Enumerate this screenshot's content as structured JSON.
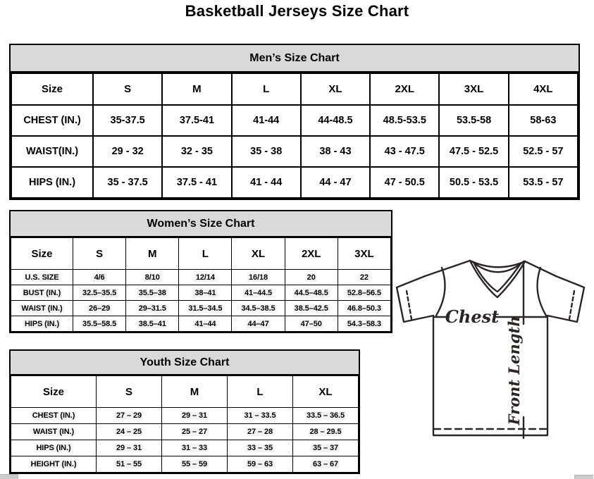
{
  "page_title": "Basketball Jerseys Size Chart",
  "mens": {
    "title": "Men’s Size Chart",
    "columns": [
      "Size",
      "S",
      "M",
      "L",
      "XL",
      "2XL",
      "3XL",
      "4XL"
    ],
    "rows": [
      {
        "label": "CHEST (IN.)",
        "values": [
          "35-37.5",
          "37.5-41",
          "41-44",
          "44-48.5",
          "48.5-53.5",
          "53.5-58",
          "58-63"
        ]
      },
      {
        "label": "WAIST(IN.)",
        "values": [
          "29 - 32",
          "32 - 35",
          "35 - 38",
          "38 - 43",
          "43 - 47.5",
          "47.5 - 52.5",
          "52.5 - 57"
        ]
      },
      {
        "label": "HIPS (IN.)",
        "values": [
          "35 - 37.5",
          "37.5 - 41",
          "41 - 44",
          "44 - 47",
          "47 - 50.5",
          "50.5 - 53.5",
          "53.5 - 57"
        ]
      }
    ]
  },
  "womens": {
    "title": "Women’s Size Chart",
    "columns": [
      "Size",
      "S",
      "M",
      "L",
      "XL",
      "2XL",
      "3XL"
    ],
    "rows": [
      {
        "label": "U.S. SIZE",
        "values": [
          "4/6",
          "8/10",
          "12/14",
          "16/18",
          "20",
          "22"
        ]
      },
      {
        "label": "BUST (IN.)",
        "values": [
          "32.5–35.5",
          "35.5–38",
          "38–41",
          "41–44.5",
          "44.5–48.5",
          "52.8–56.5"
        ]
      },
      {
        "label": "WAIST (IN.)",
        "values": [
          "26–29",
          "29–31.5",
          "31.5–34.5",
          "34.5–38.5",
          "38.5–42.5",
          "46.8–50.3"
        ]
      },
      {
        "label": "HIPS (IN.)",
        "values": [
          "35.5–58.5",
          "38.5–41",
          "41–44",
          "44–47",
          "47–50",
          "54.3–58.3"
        ]
      }
    ]
  },
  "youth": {
    "title": "Youth Size Chart",
    "columns": [
      "Size",
      "S",
      "M",
      "L",
      "XL"
    ],
    "rows": [
      {
        "label": "CHEST (IN.)",
        "values": [
          "27 – 29",
          "29 – 31",
          "31 – 33.5",
          "33.5 – 36.5"
        ]
      },
      {
        "label": "WAIST (IN.)",
        "values": [
          "24 – 25",
          "25 – 27",
          "27 – 28",
          "28 – 29.5"
        ]
      },
      {
        "label": "HIPS (IN.)",
        "values": [
          "29 – 31",
          "31 – 33",
          "33 – 35",
          "35 – 37"
        ]
      },
      {
        "label": "HEIGHT (IN.)",
        "values": [
          "51 – 55",
          "55 – 59",
          "59 – 63",
          "63 – 67"
        ]
      }
    ]
  },
  "diagram": {
    "chest_label": "Chest",
    "front_length_label": "Front Length"
  },
  "colors": {
    "table_header_bg": "#d9d9d9",
    "table_border": "#000000",
    "value_highlight": "#f2f2f2",
    "diagram_stroke": "#2b2523"
  }
}
